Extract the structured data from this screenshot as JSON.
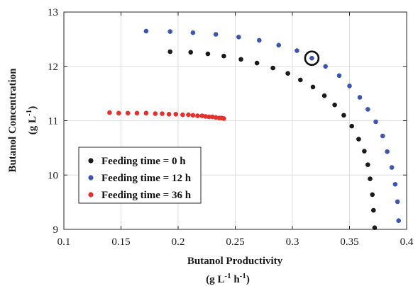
{
  "chart_data": {
    "type": "scatter",
    "xlabel": "Butanol Productivity",
    "xlabel_units": {
      "base": "(g L",
      "exp1": "-1",
      "mid": " h",
      "exp2": "-1",
      "end": ")"
    },
    "ylabel": "Butanol Concentration",
    "ylabel_units": {
      "base": "(g L",
      "exp": "-1",
      "end": ")"
    },
    "xlim": [
      0.1,
      0.4
    ],
    "ylim": [
      9,
      13
    ],
    "xticks": [
      "0.1",
      "0.15",
      "0.2",
      "0.25",
      "0.3",
      "0.35",
      "0.4"
    ],
    "yticks": [
      "9",
      "10",
      "11",
      "12",
      "13"
    ],
    "grid": true,
    "legend_position": "bottom-left",
    "series": [
      {
        "name": "Feeding time = 0 h",
        "color": "#1a1a1a",
        "points": [
          [
            0.193,
            12.27
          ],
          [
            0.211,
            12.26
          ],
          [
            0.226,
            12.23
          ],
          [
            0.24,
            12.19
          ],
          [
            0.255,
            12.13
          ],
          [
            0.269,
            12.06
          ],
          [
            0.283,
            11.97
          ],
          [
            0.296,
            11.87
          ],
          [
            0.307,
            11.75
          ],
          [
            0.318,
            11.62
          ],
          [
            0.328,
            11.46
          ],
          [
            0.337,
            11.29
          ],
          [
            0.345,
            11.1
          ],
          [
            0.352,
            10.9
          ],
          [
            0.358,
            10.66
          ],
          [
            0.363,
            10.44
          ],
          [
            0.366,
            10.19
          ],
          [
            0.368,
            9.93
          ],
          [
            0.37,
            9.64
          ],
          [
            0.371,
            9.35
          ],
          [
            0.372,
            9.03
          ]
        ]
      },
      {
        "name": "Feeding time = 12 h",
        "color": "#3d55b0",
        "points": [
          [
            0.172,
            12.65
          ],
          [
            0.193,
            12.64
          ],
          [
            0.213,
            12.62
          ],
          [
            0.233,
            12.59
          ],
          [
            0.253,
            12.54
          ],
          [
            0.271,
            12.48
          ],
          [
            0.288,
            12.39
          ],
          [
            0.304,
            12.29
          ],
          [
            0.317,
            12.15
          ],
          [
            0.329,
            12.0
          ],
          [
            0.341,
            11.83
          ],
          [
            0.35,
            11.64
          ],
          [
            0.359,
            11.43
          ],
          [
            0.366,
            11.21
          ],
          [
            0.373,
            10.98
          ],
          [
            0.379,
            10.72
          ],
          [
            0.383,
            10.43
          ],
          [
            0.387,
            10.14
          ],
          [
            0.39,
            9.83
          ],
          [
            0.392,
            9.51
          ],
          [
            0.393,
            9.16
          ]
        ]
      },
      {
        "name": "Feeding time = 36 h",
        "color": "#e3322e",
        "points": [
          [
            0.14,
            11.15
          ],
          [
            0.148,
            11.14
          ],
          [
            0.156,
            11.14
          ],
          [
            0.164,
            11.14
          ],
          [
            0.172,
            11.14
          ],
          [
            0.18,
            11.13
          ],
          [
            0.186,
            11.13
          ],
          [
            0.192,
            11.12
          ],
          [
            0.198,
            11.12
          ],
          [
            0.204,
            11.11
          ],
          [
            0.209,
            11.11
          ],
          [
            0.213,
            11.1
          ],
          [
            0.217,
            11.09
          ],
          [
            0.221,
            11.09
          ],
          [
            0.224,
            11.08
          ],
          [
            0.227,
            11.07
          ],
          [
            0.23,
            11.07
          ],
          [
            0.233,
            11.06
          ],
          [
            0.236,
            11.05
          ],
          [
            0.238,
            11.05
          ],
          [
            0.24,
            11.04
          ]
        ]
      }
    ],
    "highlight": {
      "x": 0.317,
      "y": 12.15,
      "shape": "circle"
    }
  }
}
